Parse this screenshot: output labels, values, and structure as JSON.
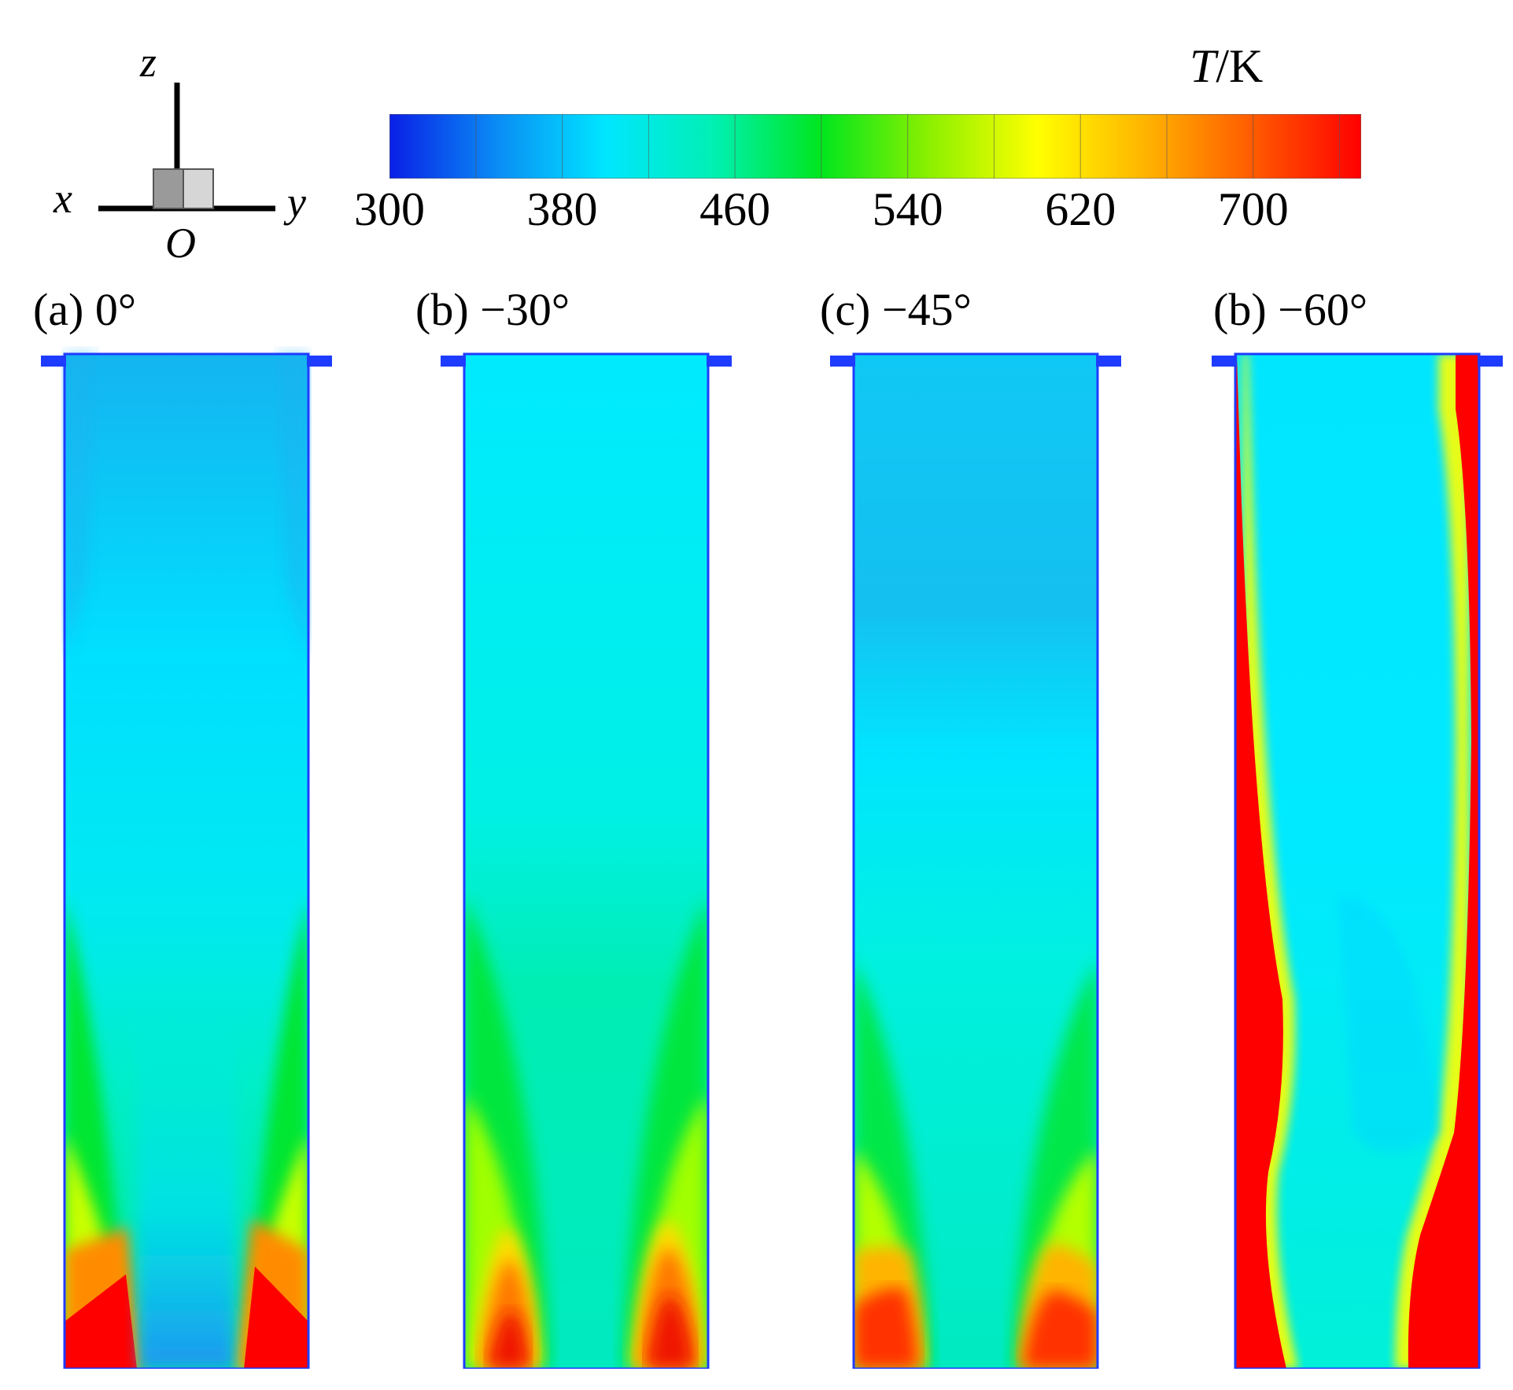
{
  "axes": {
    "z": "z",
    "x": "x",
    "y": "y",
    "origin": "O"
  },
  "colorbar": {
    "unit_italic": "T",
    "unit_rest": "/K",
    "ticks": [
      "300",
      "380",
      "460",
      "540",
      "620",
      "700"
    ],
    "tick_values": [
      300,
      380,
      460,
      540,
      620,
      700
    ],
    "range": [
      300,
      750
    ],
    "colors": [
      "#0a1fe6",
      "#0a8cf5",
      "#00e6ff",
      "#00f0b4",
      "#00e61e",
      "#8cf000",
      "#ffff00",
      "#ffb400",
      "#ff5a00",
      "#ff0000"
    ]
  },
  "panels": [
    {
      "label": "(a) 0°"
    },
    {
      "label": "(b) −30°"
    },
    {
      "label": "(c) −45°"
    },
    {
      "label": "(b) −60°"
    }
  ],
  "palette": {
    "cold": "#1ea0f0",
    "cyan": "#00eaff",
    "aqua": "#00f0c0",
    "green": "#00e632",
    "yellow": "#e6ff00",
    "orange": "#ff9600",
    "red": "#ff0000",
    "outline": "#1e3cff"
  }
}
